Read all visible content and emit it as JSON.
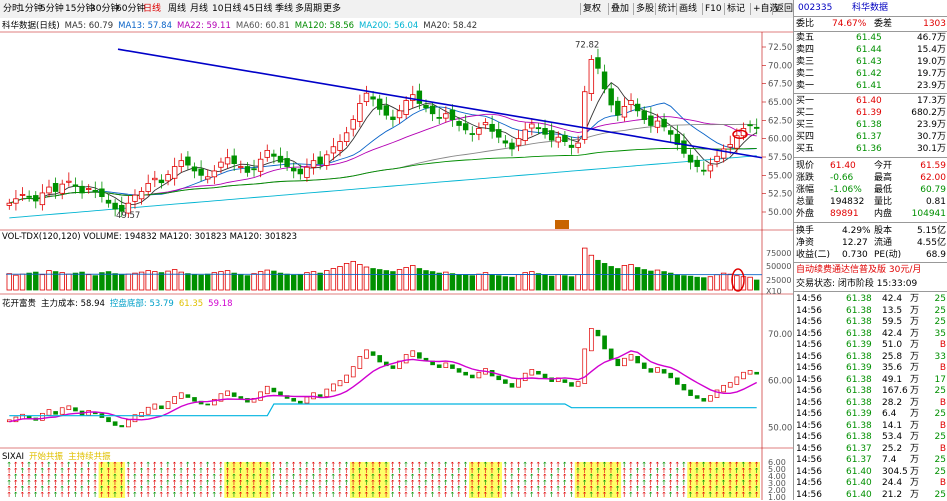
{
  "toolbar": {
    "periods": [
      "分时",
      "1分钟",
      "5分钟",
      "15分钟",
      "30分钟",
      "60分钟",
      "日线",
      "周线",
      "月线",
      "10日线",
      "45日线",
      "季线",
      "多周期",
      "更多"
    ],
    "active_period": "日线",
    "tools": [
      "复权",
      "叠加",
      "多股",
      "统计",
      "画线",
      "F10",
      "标记",
      "+自选",
      "返回"
    ]
  },
  "main_legend": {
    "title": "科华数据(日线)",
    "items": [
      {
        "text": "MA5: 60.79",
        "color": "#333333"
      },
      {
        "text": "MA13: 57.84",
        "color": "#0a64c8"
      },
      {
        "text": "MA22: 59.11",
        "color": "#b400b4"
      },
      {
        "text": "MA60: 60.81",
        "color": "#555555"
      },
      {
        "text": "MA120: 58.56",
        "color": "#008c00"
      },
      {
        "text": "MA200: 56.04",
        "color": "#00b4d2"
      },
      {
        "text": "MA20: 58.42",
        "color": "#333333"
      }
    ]
  },
  "price_axis": [
    "72.50",
    "70.00",
    "67.50",
    "65.00",
    "62.50",
    "60.00",
    "57.50",
    "55.00",
    "52.50",
    "50.00"
  ],
  "annotations": {
    "high": "72.82",
    "low": "49.57"
  },
  "vol_legend": {
    "text": "VOL-TDX(120,120)  VOLUME: 194832  MA120: 301823  MA120: 301823"
  },
  "vol_axis": [
    "75000",
    "50000",
    "25000",
    "X10"
  ],
  "ind1_legend": {
    "name": "花开富贵",
    "items": [
      {
        "text": "主力成本: 58.94",
        "color": "#000000"
      },
      {
        "text": "控盘底部: 53.79",
        "color": "#00a0c8"
      },
      {
        "text": "61.35",
        "color": "#e0c000"
      },
      {
        "text": "59.18",
        "color": "#d000d0"
      }
    ]
  },
  "ind1_axis": [
    "70.00",
    "60.00",
    "50.00"
  ],
  "ind2_legend": {
    "name": "SIXAI",
    "items": [
      "开始共振",
      "主持续共振"
    ]
  },
  "ind2_axis": [
    "6.00",
    "5.00",
    "4.00",
    "3.00",
    "2.00",
    "1.00"
  ],
  "quote": {
    "code": "002335",
    "name": "科华数据",
    "wei_bi": "74.67%",
    "wei_cha_label": "委差",
    "wei_cha": "1303",
    "wei_bi_label": "委比",
    "sell": [
      {
        "label": "卖五",
        "price": "61.45",
        "vol": "46.7万"
      },
      {
        "label": "卖四",
        "price": "61.44",
        "vol": "15.4万"
      },
      {
        "label": "卖三",
        "price": "61.43",
        "vol": "19.0万"
      },
      {
        "label": "卖二",
        "price": "61.42",
        "vol": "19.7万"
      },
      {
        "label": "卖一",
        "price": "61.41",
        "vol": "23.9万"
      }
    ],
    "buy": [
      {
        "label": "买一",
        "price": "61.40",
        "vol": "17.3万"
      },
      {
        "label": "买二",
        "price": "61.39",
        "vol": "680.2万"
      },
      {
        "label": "买三",
        "price": "61.38",
        "vol": "23.9万"
      },
      {
        "label": "买四",
        "price": "61.37",
        "vol": "30.7万"
      },
      {
        "label": "买五",
        "price": "61.36",
        "vol": "30.1万"
      }
    ],
    "stats": [
      {
        "l1": "现价",
        "v1": "61.40",
        "l2": "今开",
        "v2": "61.59",
        "c1": "red",
        "c2": "red"
      },
      {
        "l1": "涨跌",
        "v1": "-0.66",
        "l2": "最高",
        "v2": "62.00",
        "c1": "green",
        "c2": "red"
      },
      {
        "l1": "涨幅",
        "v1": "-1.06%",
        "l2": "最低",
        "v2": "60.79",
        "c1": "green",
        "c2": "green"
      },
      {
        "l1": "总量",
        "v1": "194832",
        "l2": "量比",
        "v2": "0.81",
        "c1": "black",
        "c2": "black"
      },
      {
        "l1": "外盘",
        "v1": "89891",
        "l2": "内盘",
        "v2": "104941",
        "c1": "red",
        "c2": "green"
      }
    ],
    "stats2": [
      {
        "l1": "换手",
        "v1": "4.29%",
        "l2": "股本",
        "v2": "5.15亿"
      },
      {
        "l1": "净资",
        "v1": "12.27",
        "l2": "流通",
        "v2": "4.55亿"
      },
      {
        "l1": "收益(二)",
        "v1": "0.730",
        "l2": "PE(动)",
        "v2": "68.9"
      }
    ],
    "promo": "自动续费通达信普及版 30元/月",
    "status": "交易状态: 闭市阶段 15:33:09",
    "ticks": [
      {
        "t": "14:56",
        "p": "61.38",
        "v": "42.4",
        "f": "万",
        "s": "25"
      },
      {
        "t": "14:56",
        "p": "61.38",
        "v": "13.5",
        "f": "万",
        "s": "25"
      },
      {
        "t": "14:56",
        "p": "61.38",
        "v": "59.5",
        "f": "万",
        "s": "25"
      },
      {
        "t": "14:56",
        "p": "61.38",
        "v": "42.4",
        "f": "万",
        "s": "35"
      },
      {
        "t": "14:56",
        "p": "61.39",
        "v": "51.0",
        "f": "万",
        "s": "B"
      },
      {
        "t": "14:56",
        "p": "61.38",
        "v": "25.8",
        "f": "万",
        "s": "33"
      },
      {
        "t": "14:56",
        "p": "61.39",
        "v": "35.6",
        "f": "万",
        "s": "B"
      },
      {
        "t": "14:56",
        "p": "61.38",
        "v": "49.1",
        "f": "万",
        "s": "17"
      },
      {
        "t": "14:56",
        "p": "61.38",
        "v": "167.6",
        "f": "万",
        "s": "25"
      },
      {
        "t": "14:56",
        "p": "61.38",
        "v": "28.2",
        "f": "万",
        "s": "B"
      },
      {
        "t": "14:56",
        "p": "61.39",
        "v": "6.4",
        "f": "万",
        "s": "25"
      },
      {
        "t": "14:56",
        "p": "61.38",
        "v": "14.1",
        "f": "万",
        "s": "B"
      },
      {
        "t": "14:56",
        "p": "61.38",
        "v": "53.4",
        "f": "万",
        "s": "25"
      },
      {
        "t": "14:56",
        "p": "61.37",
        "v": "25.2",
        "f": "万",
        "s": "B"
      },
      {
        "t": "14:56",
        "p": "61.37",
        "v": "7.4",
        "f": "万",
        "s": "25"
      },
      {
        "t": "14:56",
        "p": "61.40",
        "v": "304.5",
        "f": "万",
        "s": "25"
      },
      {
        "t": "14:56",
        "p": "61.40",
        "v": "24.4",
        "f": "万",
        "s": "B"
      },
      {
        "t": "14:56",
        "p": "61.40",
        "v": "21.2",
        "f": "万",
        "s": "25"
      }
    ]
  },
  "chart_data": {
    "type": "candlestick",
    "closes": [
      51.2,
      51.8,
      52.4,
      52.0,
      51.5,
      52.6,
      53.4,
      52.8,
      53.8,
      54.2,
      53.5,
      52.6,
      53.2,
      52.9,
      52.1,
      51.2,
      50.4,
      50.1,
      51.2,
      52.3,
      52.8,
      53.9,
      54.6,
      54.0,
      55.1,
      56.2,
      57.0,
      56.4,
      55.6,
      55.0,
      54.8,
      55.6,
      56.8,
      57.4,
      56.6,
      56.2,
      55.4,
      55.8,
      57.2,
      58.4,
      57.6,
      56.8,
      56.2,
      55.6,
      55.2,
      56.1,
      57.0,
      56.6,
      57.8,
      58.9,
      59.6,
      60.8,
      62.6,
      64.8,
      66.2,
      65.4,
      64.0,
      63.2,
      62.6,
      63.8,
      65.2,
      66.0,
      64.8,
      64.2,
      63.4,
      62.8,
      63.4,
      62.6,
      61.8,
      61.2,
      60.6,
      61.4,
      62.2,
      61.0,
      60.2,
      59.4,
      58.6,
      60.0,
      61.2,
      62.0,
      61.4,
      60.6,
      59.8,
      60.2,
      59.6,
      58.8,
      59.4,
      66.4,
      70.8,
      69.6,
      66.8,
      64.6,
      63.2,
      64.4,
      65.2,
      63.8,
      62.6,
      61.8,
      62.4,
      61.6,
      60.6,
      59.2,
      58.0,
      56.8,
      56.2,
      55.6,
      56.4,
      57.6,
      58.6,
      59.2,
      60.4,
      61.4,
      61.8,
      61.4
    ],
    "volumes": [
      32000,
      29000,
      31000,
      33000,
      35000,
      30000,
      38000,
      36000,
      34000,
      31000,
      33000,
      35000,
      30000,
      28000,
      34000,
      36000,
      32000,
      30000,
      31000,
      33000,
      35000,
      38000,
      36000,
      34000,
      37000,
      40000,
      35000,
      32000,
      30000,
      29000,
      31000,
      34000,
      36000,
      38000,
      33000,
      30000,
      28000,
      32000,
      36000,
      39000,
      37000,
      33000,
      31000,
      29000,
      30000,
      34000,
      36000,
      33000,
      38000,
      42000,
      46000,
      52000,
      56000,
      50000,
      45000,
      42000,
      40000,
      38000,
      36000,
      40000,
      44000,
      48000,
      42000,
      38000,
      36000,
      33000,
      35000,
      32000,
      30000,
      29000,
      28000,
      31000,
      34000,
      30000,
      28000,
      26000,
      25000,
      30000,
      34000,
      36000,
      32000,
      29000,
      27000,
      30000,
      28000,
      26000,
      30000,
      82000,
      68000,
      58000,
      52000,
      46000,
      42000,
      48000,
      50000,
      44000,
      40000,
      37000,
      39000,
      36000,
      33000,
      30000,
      28000,
      27000,
      25000,
      24000,
      26000,
      30000,
      33000,
      31000,
      28000,
      26000,
      25000,
      19483
    ],
    "ylim": [
      48.5,
      74
    ],
    "vol_ylim": [
      0,
      90000
    ]
  }
}
